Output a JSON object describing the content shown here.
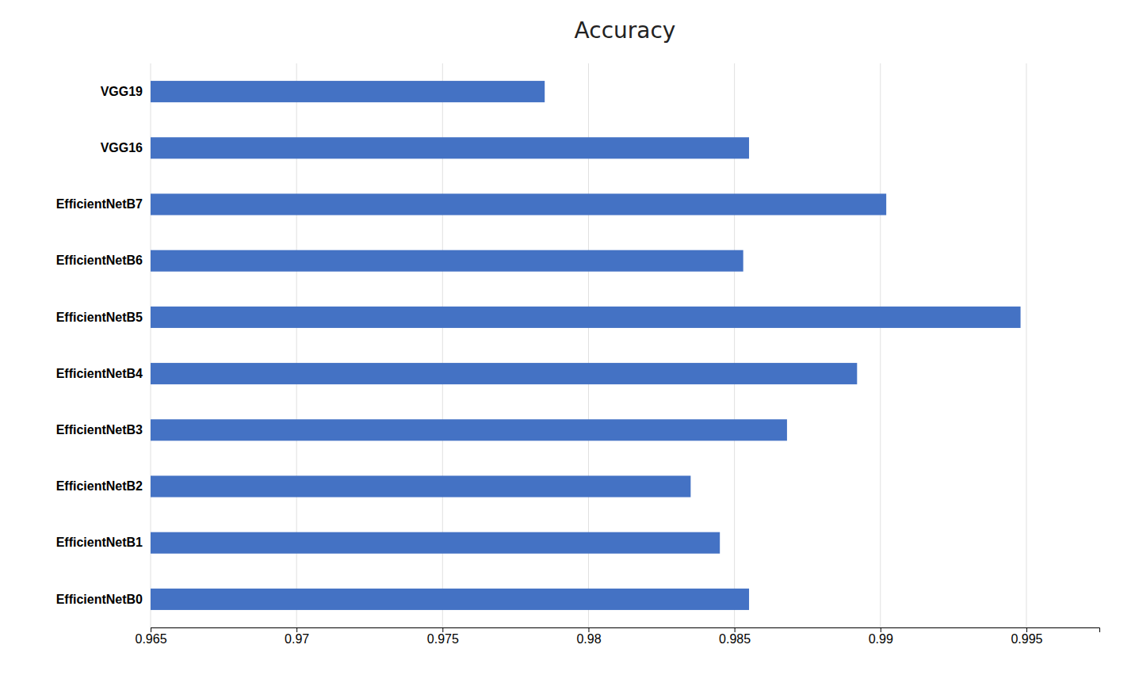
{
  "chart_data": {
    "type": "bar",
    "title": "Accuracy",
    "orientation": "horizontal",
    "categories": [
      "EfficientNetB0",
      "EfficientNetB1",
      "EfficientNetB2",
      "EfficientNetB3",
      "EfficientNetB4",
      "EfficientNetB5",
      "EfficientNetB6",
      "EfficientNetB7",
      "VGG16",
      "VGG19"
    ],
    "values": [
      0.9855,
      0.9845,
      0.9835,
      0.9868,
      0.9892,
      0.9948,
      0.9853,
      0.9902,
      0.9855,
      0.9785
    ],
    "color": "#4472C4",
    "xlim": [
      0.965,
      0.9975
    ],
    "xticks": [
      0.965,
      0.97,
      0.975,
      0.98,
      0.985,
      0.99,
      0.995
    ],
    "grid": true
  }
}
